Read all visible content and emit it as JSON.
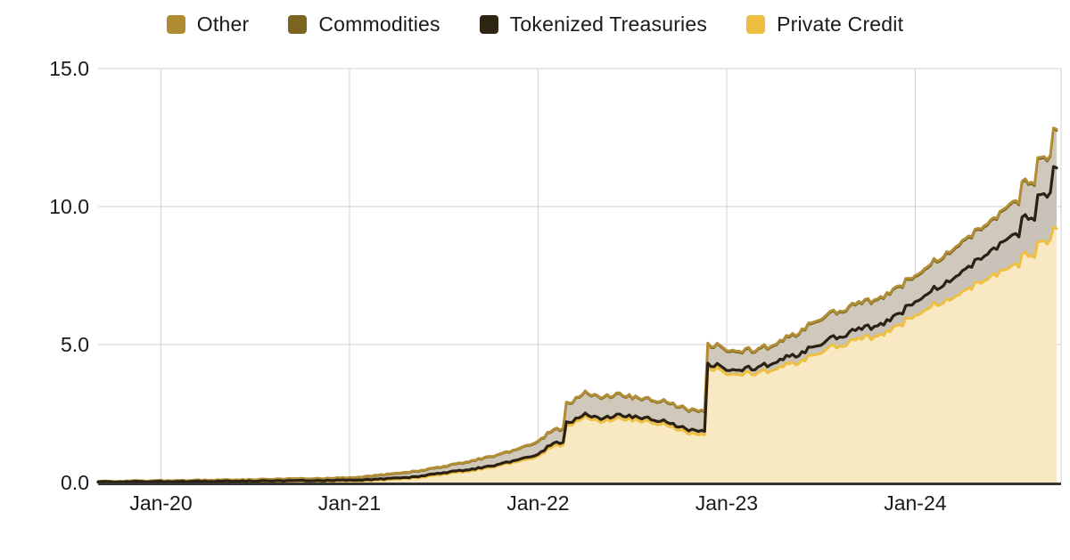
{
  "chart_data": {
    "type": "area",
    "stacked": true,
    "title": "",
    "legend_position": "top",
    "grid": true,
    "background": "#ffffff",
    "colors": {
      "grid_line": "#d9d9d9",
      "axis_line": "#343434",
      "label_text": "#191919"
    },
    "legend": [
      {
        "label": "Other",
        "color": "#AF8C32"
      },
      {
        "label": "Commodities",
        "color": "#7A6420"
      },
      {
        "label": "Tokenized Treasuries",
        "color": "#2E2513"
      },
      {
        "label": "Private Credit",
        "color": "#EDBE41"
      }
    ],
    "y_axis": {
      "min": 0,
      "max": 15,
      "ticks": [
        {
          "value": 0,
          "label": "0.0"
        },
        {
          "value": 5,
          "label": "5.0"
        },
        {
          "value": 10,
          "label": "10.0"
        },
        {
          "value": 15,
          "label": "15.0"
        }
      ]
    },
    "x_axis": {
      "ticks": [
        {
          "index": 4,
          "label": "Jan-20"
        },
        {
          "index": 16,
          "label": "Jan-21"
        },
        {
          "index": 28,
          "label": "Jan-22"
        },
        {
          "index": 40,
          "label": "Jan-23"
        },
        {
          "index": 52,
          "label": "Jan-24"
        }
      ]
    },
    "categories": [
      "Sep-19",
      "Oct-19",
      "Nov-19",
      "Dec-19",
      "Jan-20",
      "Feb-20",
      "Mar-20",
      "Apr-20",
      "May-20",
      "Jun-20",
      "Jul-20",
      "Aug-20",
      "Sep-20",
      "Oct-20",
      "Nov-20",
      "Dec-20",
      "Jan-21",
      "Feb-21",
      "Mar-21",
      "Apr-21",
      "May-21",
      "Jun-21",
      "Jul-21",
      "Aug-21",
      "Sep-21",
      "Oct-21",
      "Nov-21",
      "Dec-21",
      "Jan-22",
      "Feb-22",
      "Mar-22",
      "Apr-22",
      "May-22",
      "Jun-22",
      "Jul-22",
      "Aug-22",
      "Sep-22",
      "Oct-22",
      "Nov-22",
      "Dec-22",
      "Jan-23",
      "Feb-23",
      "Mar-23",
      "Apr-23",
      "May-23",
      "Jun-23",
      "Jul-23",
      "Aug-23",
      "Sep-23",
      "Oct-23",
      "Nov-23",
      "Dec-23",
      "Jan-24",
      "Feb-24",
      "Mar-24",
      "Apr-24",
      "May-24",
      "Jun-24",
      "Jul-24",
      "Aug-24",
      "Sep-24",
      "Oct-24"
    ],
    "series": [
      {
        "name": "Private Credit",
        "line_color": "#EFBF40",
        "fill_color": "#F8E9C3",
        "line_width": 3,
        "values": [
          0.02,
          0.02,
          0.02,
          0.02,
          0.02,
          0.02,
          0.02,
          0.03,
          0.03,
          0.03,
          0.03,
          0.04,
          0.04,
          0.04,
          0.05,
          0.05,
          0.06,
          0.07,
          0.09,
          0.12,
          0.16,
          0.22,
          0.3,
          0.38,
          0.45,
          0.55,
          0.68,
          0.8,
          0.95,
          1.35,
          2.05,
          2.4,
          2.2,
          2.3,
          2.28,
          2.22,
          2.1,
          1.92,
          1.72,
          4.15,
          4.0,
          3.95,
          3.98,
          4.08,
          4.28,
          4.5,
          4.75,
          4.92,
          5.1,
          5.25,
          5.42,
          5.7,
          6.15,
          6.4,
          6.65,
          6.95,
          7.2,
          7.5,
          7.85,
          8.25,
          8.7,
          9.2
        ]
      },
      {
        "name": "Tokenized Treasuries",
        "line_color": "#2A2112",
        "fill_color": "#C8C2B9",
        "line_width": 3.2,
        "values": [
          0.01,
          0.01,
          0.01,
          0.01,
          0.01,
          0.01,
          0.02,
          0.01,
          0.02,
          0.02,
          0.02,
          0.02,
          0.02,
          0.03,
          0.02,
          0.03,
          0.03,
          0.03,
          0.04,
          0.04,
          0.04,
          0.05,
          0.05,
          0.05,
          0.05,
          0.05,
          0.05,
          0.07,
          0.07,
          0.1,
          0.1,
          0.1,
          0.12,
          0.12,
          0.12,
          0.12,
          0.12,
          0.12,
          0.13,
          0.13,
          0.15,
          0.17,
          0.2,
          0.24,
          0.27,
          0.3,
          0.3,
          0.33,
          0.35,
          0.37,
          0.38,
          0.42,
          0.5,
          0.55,
          0.65,
          0.75,
          0.85,
          0.95,
          1.1,
          1.35,
          1.7,
          2.2
        ]
      },
      {
        "name": "Commodities",
        "line_color": "#6F5B1D",
        "fill_color": "#D0C9BB",
        "line_width": 2.5,
        "values": [
          0.01,
          0.01,
          0.02,
          0.02,
          0.03,
          0.03,
          0.03,
          0.04,
          0.04,
          0.04,
          0.05,
          0.05,
          0.06,
          0.06,
          0.07,
          0.07,
          0.07,
          0.1,
          0.13,
          0.15,
          0.18,
          0.19,
          0.21,
          0.25,
          0.3,
          0.33,
          0.35,
          0.39,
          0.45,
          0.47,
          0.67,
          0.77,
          0.75,
          0.73,
          0.69,
          0.68,
          0.7,
          0.71,
          0.7,
          0.69,
          0.69,
          0.64,
          0.63,
          0.62,
          0.69,
          0.81,
          0.89,
          0.89,
          0.91,
          0.92,
          0.94,
          0.96,
          0.9,
          0.95,
          1.0,
          1.05,
          1.05,
          1.05,
          1.15,
          1.25,
          1.3,
          1.35
        ]
      },
      {
        "name": "Other",
        "line_color": "#B18E35",
        "fill_color": "#D0C9BB",
        "line_width": 3,
        "values": [
          0.01,
          0.01,
          0.01,
          0.01,
          0.01,
          0.01,
          0.01,
          0.01,
          0.01,
          0.01,
          0.01,
          0.01,
          0.01,
          0.01,
          0.01,
          0.01,
          0.02,
          0.02,
          0.02,
          0.02,
          0.02,
          0.02,
          0.02,
          0.02,
          0.02,
          0.02,
          0.02,
          0.02,
          0.03,
          0.03,
          0.03,
          0.03,
          0.03,
          0.03,
          0.03,
          0.03,
          0.03,
          0.03,
          0.03,
          0.03,
          0.04,
          0.04,
          0.04,
          0.04,
          0.04,
          0.04,
          0.04,
          0.04,
          0.04,
          0.04,
          0.04,
          0.04,
          0.05,
          0.05,
          0.05,
          0.05,
          0.05,
          0.05,
          0.05,
          0.05,
          0.05,
          0.05
        ]
      }
    ]
  }
}
